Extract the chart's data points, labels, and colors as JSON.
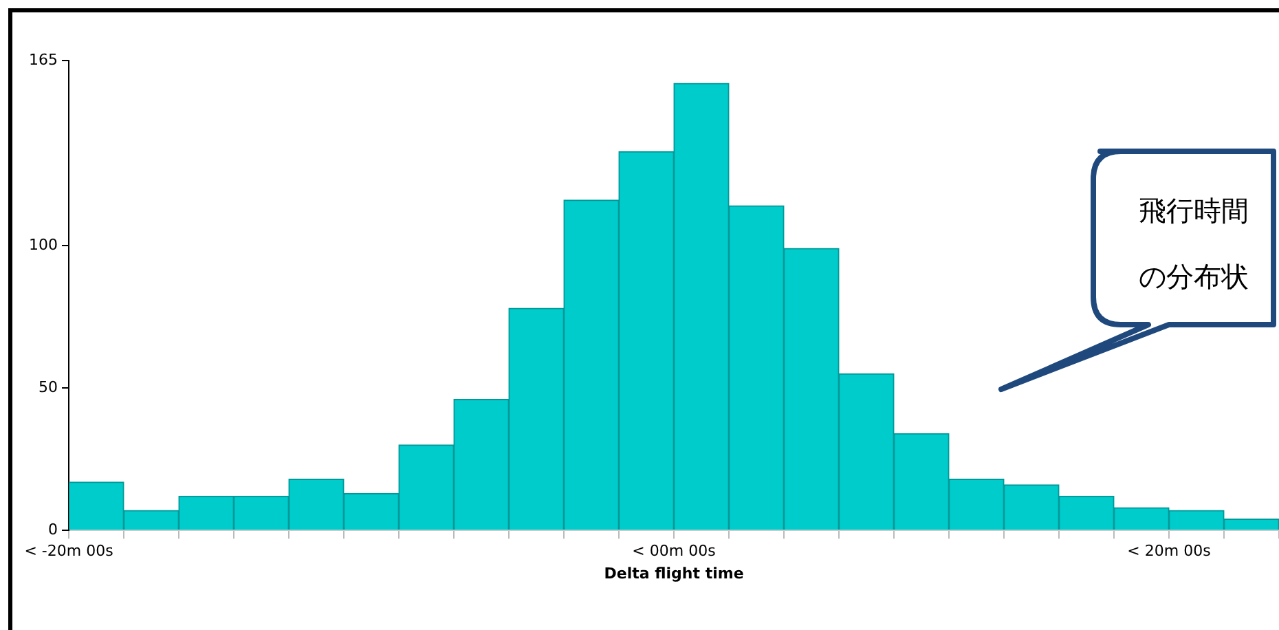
{
  "chart_data": {
    "type": "bar",
    "xlabel": "Delta flight time",
    "categories": [
      "< -20m 00s",
      null,
      null,
      null,
      null,
      null,
      null,
      null,
      null,
      null,
      null,
      "< 00m 00s",
      null,
      null,
      null,
      null,
      null,
      null,
      null,
      null,
      "< 20m 00s",
      null
    ],
    "values": [
      17,
      7,
      12,
      12,
      18,
      13,
      30,
      46,
      78,
      116,
      133,
      157,
      114,
      99,
      55,
      34,
      18,
      16,
      12,
      8,
      7,
      4
    ],
    "color": "#00cccc",
    "ylim": [
      0,
      165
    ],
    "yticks": [
      0,
      50,
      100,
      165
    ],
    "grid": false,
    "legend": false,
    "annotations": [
      "飛行時間",
      "の分布状"
    ]
  }
}
